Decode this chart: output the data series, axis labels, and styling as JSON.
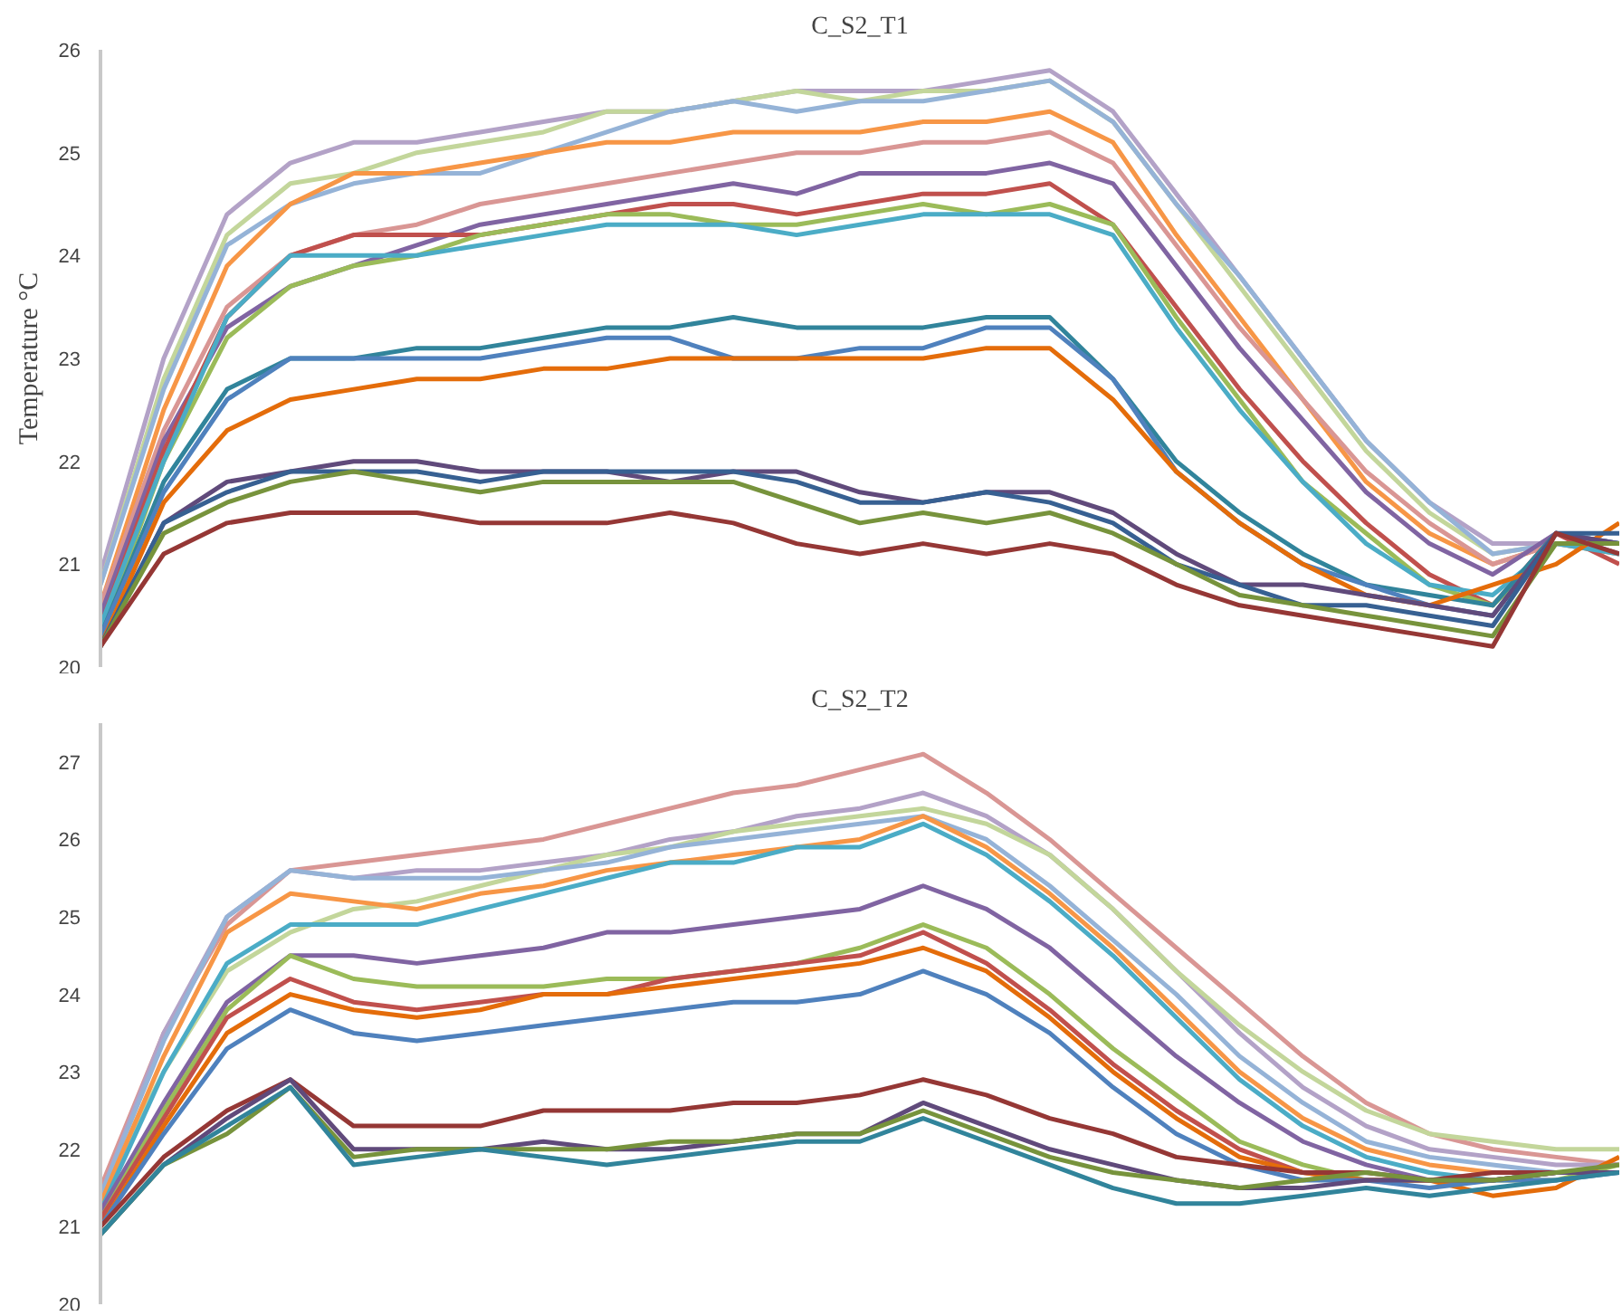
{
  "chart_data": [
    {
      "type": "line",
      "title": "C_S2_T1",
      "ylabel": "Temperature °C",
      "categories": [
        null,
        null,
        null,
        null,
        null,
        null,
        null,
        null,
        null,
        null,
        null,
        null,
        null,
        null,
        null,
        null,
        null,
        null,
        null,
        null,
        null,
        null,
        null,
        null,
        null
      ],
      "ylim": [
        20,
        26
      ],
      "yticks": [
        20,
        21,
        22,
        23,
        24,
        25,
        26
      ],
      "grid": false,
      "tick_labels": "y",
      "marker": "none",
      "line_style": "solid",
      "series": [
        {
          "color": "#b3a2c7",
          "values": [
            20.9,
            23.0,
            24.4,
            24.9,
            25.1,
            25.1,
            25.2,
            25.3,
            25.4,
            25.4,
            25.5,
            25.6,
            25.6,
            25.6,
            25.7,
            25.8,
            25.4,
            24.6,
            23.8,
            23.0,
            22.2,
            21.6,
            21.2,
            21.2,
            21.2
          ]
        },
        {
          "color": "#c3d69b",
          "values": [
            20.8,
            22.8,
            24.2,
            24.7,
            24.8,
            25.0,
            25.1,
            25.2,
            25.4,
            25.4,
            25.5,
            25.6,
            25.5,
            25.6,
            25.6,
            25.7,
            25.3,
            24.5,
            23.7,
            22.9,
            22.1,
            21.5,
            21.1,
            21.2,
            21.2
          ]
        },
        {
          "color": "#95b3d7",
          "values": [
            20.8,
            22.7,
            24.1,
            24.5,
            24.7,
            24.8,
            24.8,
            25.0,
            25.2,
            25.4,
            25.5,
            25.4,
            25.5,
            25.5,
            25.6,
            25.7,
            25.3,
            24.5,
            23.8,
            23.0,
            22.2,
            21.6,
            21.1,
            21.2,
            21.1
          ]
        },
        {
          "color": "#f79646",
          "values": [
            20.6,
            22.5,
            23.9,
            24.5,
            24.8,
            24.8,
            24.9,
            25.0,
            25.1,
            25.1,
            25.2,
            25.2,
            25.2,
            25.3,
            25.3,
            25.4,
            25.1,
            24.2,
            23.4,
            22.6,
            21.8,
            21.3,
            21.0,
            21.2,
            21.1
          ]
        },
        {
          "color": "#d99694",
          "values": [
            20.6,
            22.3,
            23.5,
            24.0,
            24.2,
            24.3,
            24.5,
            24.6,
            24.7,
            24.8,
            24.9,
            25.0,
            25.0,
            25.1,
            25.1,
            25.2,
            24.9,
            24.1,
            23.3,
            22.6,
            21.9,
            21.4,
            21.0,
            21.2,
            21.2
          ]
        },
        {
          "color": "#8064a2",
          "values": [
            20.5,
            22.2,
            23.3,
            23.7,
            23.9,
            24.1,
            24.3,
            24.4,
            24.5,
            24.6,
            24.7,
            24.6,
            24.8,
            24.8,
            24.8,
            24.9,
            24.7,
            23.9,
            23.1,
            22.4,
            21.7,
            21.2,
            20.9,
            21.3,
            21.1
          ]
        },
        {
          "color": "#c0504d",
          "values": [
            20.4,
            22.1,
            23.4,
            24.0,
            24.2,
            24.2,
            24.2,
            24.3,
            24.4,
            24.5,
            24.5,
            24.4,
            24.5,
            24.6,
            24.6,
            24.7,
            24.3,
            23.5,
            22.7,
            22.0,
            21.4,
            20.9,
            20.6,
            21.3,
            21.0
          ]
        },
        {
          "color": "#9bbb59",
          "values": [
            20.3,
            22.0,
            23.2,
            23.7,
            23.9,
            24.0,
            24.2,
            24.3,
            24.4,
            24.4,
            24.3,
            24.3,
            24.4,
            24.5,
            24.4,
            24.5,
            24.3,
            23.4,
            22.6,
            21.8,
            21.3,
            20.8,
            20.6,
            21.2,
            21.2
          ]
        },
        {
          "color": "#4bacc6",
          "values": [
            20.4,
            22.0,
            23.4,
            24.0,
            24.0,
            24.0,
            24.1,
            24.2,
            24.3,
            24.3,
            24.3,
            24.2,
            24.3,
            24.4,
            24.4,
            24.4,
            24.2,
            23.3,
            22.5,
            21.8,
            21.2,
            20.8,
            20.7,
            21.2,
            21.1
          ]
        },
        {
          "color": "#31849b",
          "values": [
            20.3,
            21.8,
            22.7,
            23.0,
            23.0,
            23.1,
            23.1,
            23.2,
            23.3,
            23.3,
            23.4,
            23.3,
            23.3,
            23.3,
            23.4,
            23.4,
            22.8,
            22.0,
            21.5,
            21.1,
            20.8,
            20.7,
            20.6,
            21.3,
            21.2
          ]
        },
        {
          "color": "#4f81bd",
          "values": [
            20.3,
            21.7,
            22.6,
            23.0,
            23.0,
            23.0,
            23.0,
            23.1,
            23.2,
            23.2,
            23.0,
            23.0,
            23.1,
            23.1,
            23.3,
            23.3,
            22.8,
            21.9,
            21.4,
            21.0,
            20.8,
            20.6,
            20.5,
            21.3,
            21.2
          ]
        },
        {
          "color": "#e46c0a",
          "values": [
            20.2,
            21.6,
            22.3,
            22.6,
            22.7,
            22.8,
            22.8,
            22.9,
            22.9,
            23.0,
            23.0,
            23.0,
            23.0,
            23.0,
            23.1,
            23.1,
            22.6,
            21.9,
            21.4,
            21.0,
            20.7,
            20.6,
            20.8,
            21.0,
            21.4
          ]
        },
        {
          "color": "#604a7b",
          "values": [
            20.2,
            21.4,
            21.8,
            21.9,
            22.0,
            22.0,
            21.9,
            21.9,
            21.9,
            21.8,
            21.9,
            21.9,
            21.7,
            21.6,
            21.7,
            21.7,
            21.5,
            21.1,
            20.8,
            20.8,
            20.7,
            20.6,
            20.5,
            21.3,
            21.2
          ]
        },
        {
          "color": "#376092",
          "values": [
            20.2,
            21.4,
            21.7,
            21.9,
            21.9,
            21.9,
            21.8,
            21.9,
            21.9,
            21.9,
            21.9,
            21.8,
            21.6,
            21.6,
            21.7,
            21.6,
            21.4,
            21.0,
            20.8,
            20.6,
            20.6,
            20.5,
            20.4,
            21.3,
            21.3
          ]
        },
        {
          "color": "#77933c",
          "values": [
            20.2,
            21.3,
            21.6,
            21.8,
            21.9,
            21.8,
            21.7,
            21.8,
            21.8,
            21.8,
            21.8,
            21.6,
            21.4,
            21.5,
            21.4,
            21.5,
            21.3,
            21.0,
            20.7,
            20.6,
            20.5,
            20.4,
            20.3,
            21.2,
            21.2
          ]
        },
        {
          "color": "#953735",
          "values": [
            20.2,
            21.1,
            21.4,
            21.5,
            21.5,
            21.5,
            21.4,
            21.4,
            21.4,
            21.5,
            21.4,
            21.2,
            21.1,
            21.2,
            21.1,
            21.2,
            21.1,
            20.8,
            20.6,
            20.5,
            20.4,
            20.3,
            20.2,
            21.3,
            21.1
          ]
        }
      ]
    },
    {
      "type": "line",
      "title": "C_S2_T2",
      "categories": [
        null,
        null,
        null,
        null,
        null,
        null,
        null,
        null,
        null,
        null,
        null,
        null,
        null,
        null,
        null,
        null,
        null,
        null,
        null,
        null,
        null,
        null,
        null,
        null,
        null
      ],
      "ylim": [
        20,
        27.5
      ],
      "yticks": [
        20,
        21,
        22,
        23,
        24,
        25,
        26,
        27
      ],
      "grid": false,
      "tick_labels": "y",
      "marker": "none",
      "line_style": "solid",
      "series": [
        {
          "color": "#d99694",
          "values": [
            21.5,
            23.5,
            24.9,
            25.6,
            25.7,
            25.8,
            25.9,
            26.0,
            26.2,
            26.4,
            26.6,
            26.7,
            26.9,
            27.1,
            26.6,
            26.0,
            25.3,
            24.6,
            23.9,
            23.2,
            22.6,
            22.2,
            22.0,
            21.9,
            21.8
          ]
        },
        {
          "color": "#b3a2c7",
          "values": [
            21.4,
            23.5,
            25.0,
            25.6,
            25.5,
            25.6,
            25.6,
            25.7,
            25.8,
            26.0,
            26.1,
            26.3,
            26.4,
            26.6,
            26.3,
            25.8,
            25.1,
            24.3,
            23.5,
            22.8,
            22.3,
            22.0,
            21.9,
            21.8,
            21.8
          ]
        },
        {
          "color": "#c3d69b",
          "values": [
            21.4,
            23.0,
            24.3,
            24.8,
            25.1,
            25.2,
            25.4,
            25.6,
            25.8,
            25.9,
            26.1,
            26.2,
            26.3,
            26.4,
            26.2,
            25.8,
            25.1,
            24.3,
            23.6,
            23.0,
            22.5,
            22.2,
            22.1,
            22.0,
            22.0
          ]
        },
        {
          "color": "#95b3d7",
          "values": [
            21.4,
            23.4,
            25.0,
            25.6,
            25.5,
            25.5,
            25.5,
            25.6,
            25.7,
            25.9,
            26.0,
            26.1,
            26.2,
            26.3,
            26.0,
            25.4,
            24.7,
            24.0,
            23.2,
            22.6,
            22.1,
            21.9,
            21.8,
            21.7,
            21.7
          ]
        },
        {
          "color": "#f79646",
          "values": [
            21.3,
            23.2,
            24.8,
            25.3,
            25.2,
            25.1,
            25.3,
            25.4,
            25.6,
            25.7,
            25.8,
            25.9,
            26.0,
            26.3,
            25.9,
            25.3,
            24.6,
            23.8,
            23.0,
            22.4,
            22.0,
            21.8,
            21.7,
            21.7,
            21.7
          ]
        },
        {
          "color": "#4bacc6",
          "values": [
            21.2,
            23.0,
            24.4,
            24.9,
            24.9,
            24.9,
            25.1,
            25.3,
            25.5,
            25.7,
            25.7,
            25.9,
            25.9,
            26.2,
            25.8,
            25.2,
            24.5,
            23.7,
            22.9,
            22.3,
            21.9,
            21.7,
            21.6,
            21.7,
            21.7
          ]
        },
        {
          "color": "#8064a2",
          "values": [
            21.2,
            22.6,
            23.9,
            24.5,
            24.5,
            24.4,
            24.5,
            24.6,
            24.8,
            24.8,
            24.9,
            25.0,
            25.1,
            25.4,
            25.1,
            24.6,
            23.9,
            23.2,
            22.6,
            22.1,
            21.8,
            21.6,
            21.6,
            21.7,
            21.7
          ]
        },
        {
          "color": "#9bbb59",
          "values": [
            21.1,
            22.5,
            23.8,
            24.5,
            24.2,
            24.1,
            24.1,
            24.1,
            24.2,
            24.2,
            24.3,
            24.4,
            24.6,
            24.9,
            24.6,
            24.0,
            23.3,
            22.7,
            22.1,
            21.8,
            21.6,
            21.6,
            21.6,
            21.6,
            21.8
          ]
        },
        {
          "color": "#c0504d",
          "values": [
            21.1,
            22.4,
            23.7,
            24.2,
            23.9,
            23.8,
            23.9,
            24.0,
            24.0,
            24.2,
            24.3,
            24.4,
            24.5,
            24.8,
            24.4,
            23.8,
            23.1,
            22.5,
            22.0,
            21.7,
            21.6,
            21.6,
            21.6,
            21.7,
            21.7
          ]
        },
        {
          "color": "#e46c0a",
          "values": [
            21.0,
            22.3,
            23.5,
            24.0,
            23.8,
            23.7,
            23.8,
            24.0,
            24.0,
            24.1,
            24.2,
            24.3,
            24.4,
            24.6,
            24.3,
            23.7,
            23.0,
            22.4,
            21.9,
            21.7,
            21.6,
            21.6,
            21.4,
            21.5,
            21.9
          ]
        },
        {
          "color": "#4f81bd",
          "values": [
            21.0,
            22.2,
            23.3,
            23.8,
            23.5,
            23.4,
            23.5,
            23.6,
            23.7,
            23.8,
            23.9,
            23.9,
            24.0,
            24.3,
            24.0,
            23.5,
            22.8,
            22.2,
            21.8,
            21.6,
            21.6,
            21.5,
            21.6,
            21.6,
            21.7
          ]
        },
        {
          "color": "#953735",
          "values": [
            21.0,
            21.9,
            22.5,
            22.9,
            22.3,
            22.3,
            22.3,
            22.5,
            22.5,
            22.5,
            22.6,
            22.6,
            22.7,
            22.9,
            22.7,
            22.4,
            22.2,
            21.9,
            21.8,
            21.7,
            21.7,
            21.6,
            21.7,
            21.7,
            21.7
          ]
        },
        {
          "color": "#604a7b",
          "values": [
            20.9,
            21.8,
            22.4,
            22.9,
            22.0,
            22.0,
            22.0,
            22.1,
            22.0,
            22.0,
            22.1,
            22.2,
            22.2,
            22.6,
            22.3,
            22.0,
            21.8,
            21.6,
            21.5,
            21.5,
            21.6,
            21.6,
            21.6,
            21.7,
            21.7
          ]
        },
        {
          "color": "#77933c",
          "values": [
            20.9,
            21.8,
            22.2,
            22.8,
            21.9,
            22.0,
            22.0,
            22.0,
            22.0,
            22.1,
            22.1,
            22.2,
            22.2,
            22.5,
            22.2,
            21.9,
            21.7,
            21.6,
            21.5,
            21.6,
            21.7,
            21.6,
            21.6,
            21.7,
            21.8
          ]
        },
        {
          "color": "#31849b",
          "values": [
            20.9,
            21.8,
            22.3,
            22.8,
            21.8,
            21.9,
            22.0,
            21.9,
            21.8,
            21.9,
            22.0,
            22.1,
            22.1,
            22.4,
            22.1,
            21.8,
            21.5,
            21.3,
            21.3,
            21.4,
            21.5,
            21.4,
            21.5,
            21.6,
            21.7
          ]
        }
      ]
    }
  ]
}
